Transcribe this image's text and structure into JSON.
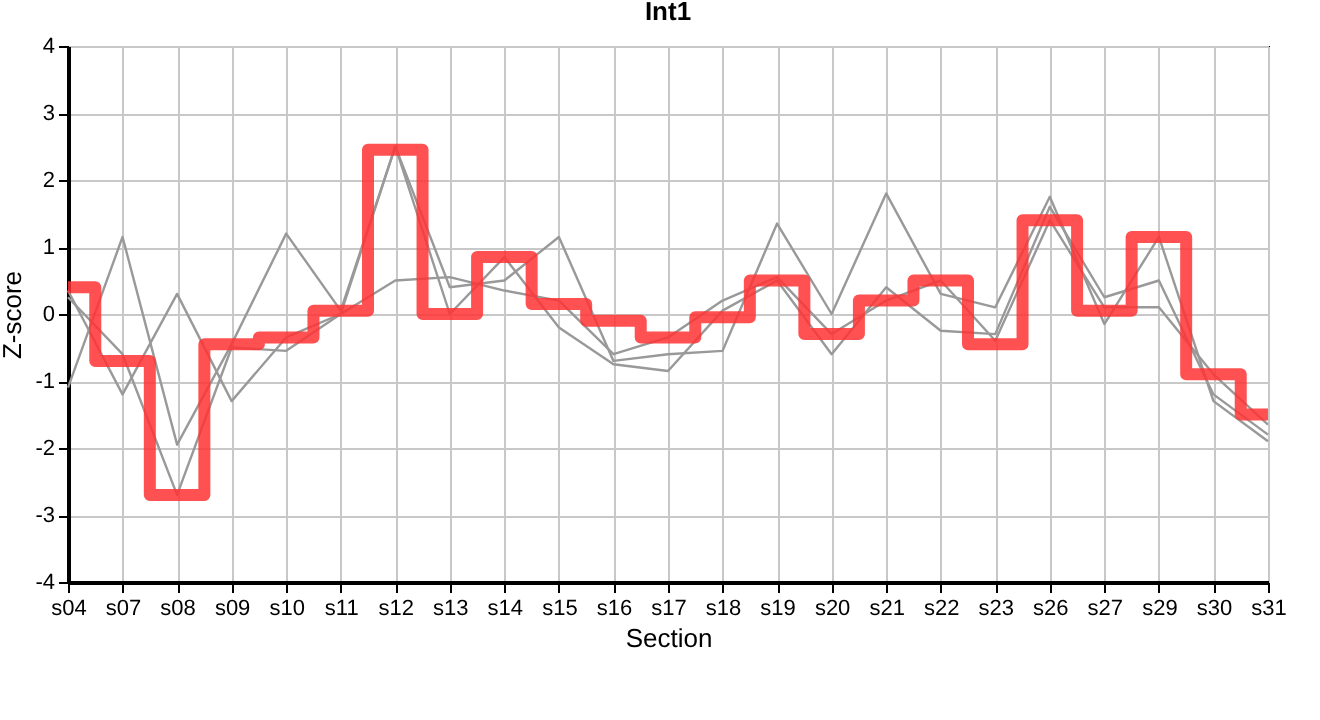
{
  "chart_data": {
    "type": "line",
    "title": "Int1",
    "xlabel": "Section",
    "ylabel": "Z-score",
    "categories": [
      "s04",
      "s07",
      "s08",
      "s09",
      "s10",
      "s11",
      "s12",
      "s13",
      "s14",
      "s15",
      "s16",
      "s17",
      "s18",
      "s19",
      "s20",
      "s21",
      "s22",
      "s23",
      "s26",
      "s27",
      "s29",
      "s30",
      "s31"
    ],
    "series": [
      {
        "color": "#999999",
        "values": [
          -1.1,
          1.15,
          -1.95,
          -0.45,
          1.2,
          0.05,
          2.5,
          0.4,
          0.5,
          1.15,
          -0.7,
          -0.6,
          -0.55,
          1.35,
          0.0,
          1.8,
          0.3,
          0.1,
          1.75,
          -0.15,
          1.15,
          -1.3,
          -1.9
        ]
      },
      {
        "color": "#999999",
        "values": [
          0.35,
          -1.2,
          0.3,
          -1.3,
          -0.35,
          0.0,
          2.5,
          0.0,
          0.85,
          -0.2,
          -0.75,
          -0.85,
          0.05,
          0.5,
          -0.6,
          0.4,
          -0.25,
          -0.3,
          1.6,
          0.25,
          0.5,
          -1.2,
          -1.8
        ]
      },
      {
        "color": "#999999",
        "values": [
          0.25,
          -0.6,
          -2.7,
          -0.5,
          -0.55,
          0.0,
          0.5,
          0.55,
          0.35,
          0.2,
          -0.6,
          -0.35,
          0.2,
          0.55,
          -0.3,
          0.2,
          0.5,
          -0.4,
          1.4,
          0.1,
          0.1,
          -0.9,
          -1.65
        ]
      },
      {
        "type": "step",
        "color": "#ff3333",
        "values": [
          0.4,
          -0.7,
          -2.7,
          -0.45,
          -0.35,
          0.05,
          2.45,
          0.0,
          0.85,
          0.15,
          -0.1,
          -0.35,
          -0.05,
          0.5,
          -0.3,
          0.2,
          0.5,
          -0.45,
          1.4,
          0.05,
          1.15,
          -0.9,
          -1.5
        ]
      }
    ],
    "ylim": [
      -4,
      4
    ],
    "yticks": [
      -4,
      -3,
      -2,
      -1,
      0,
      1,
      2,
      3,
      4
    ],
    "grid": true
  }
}
